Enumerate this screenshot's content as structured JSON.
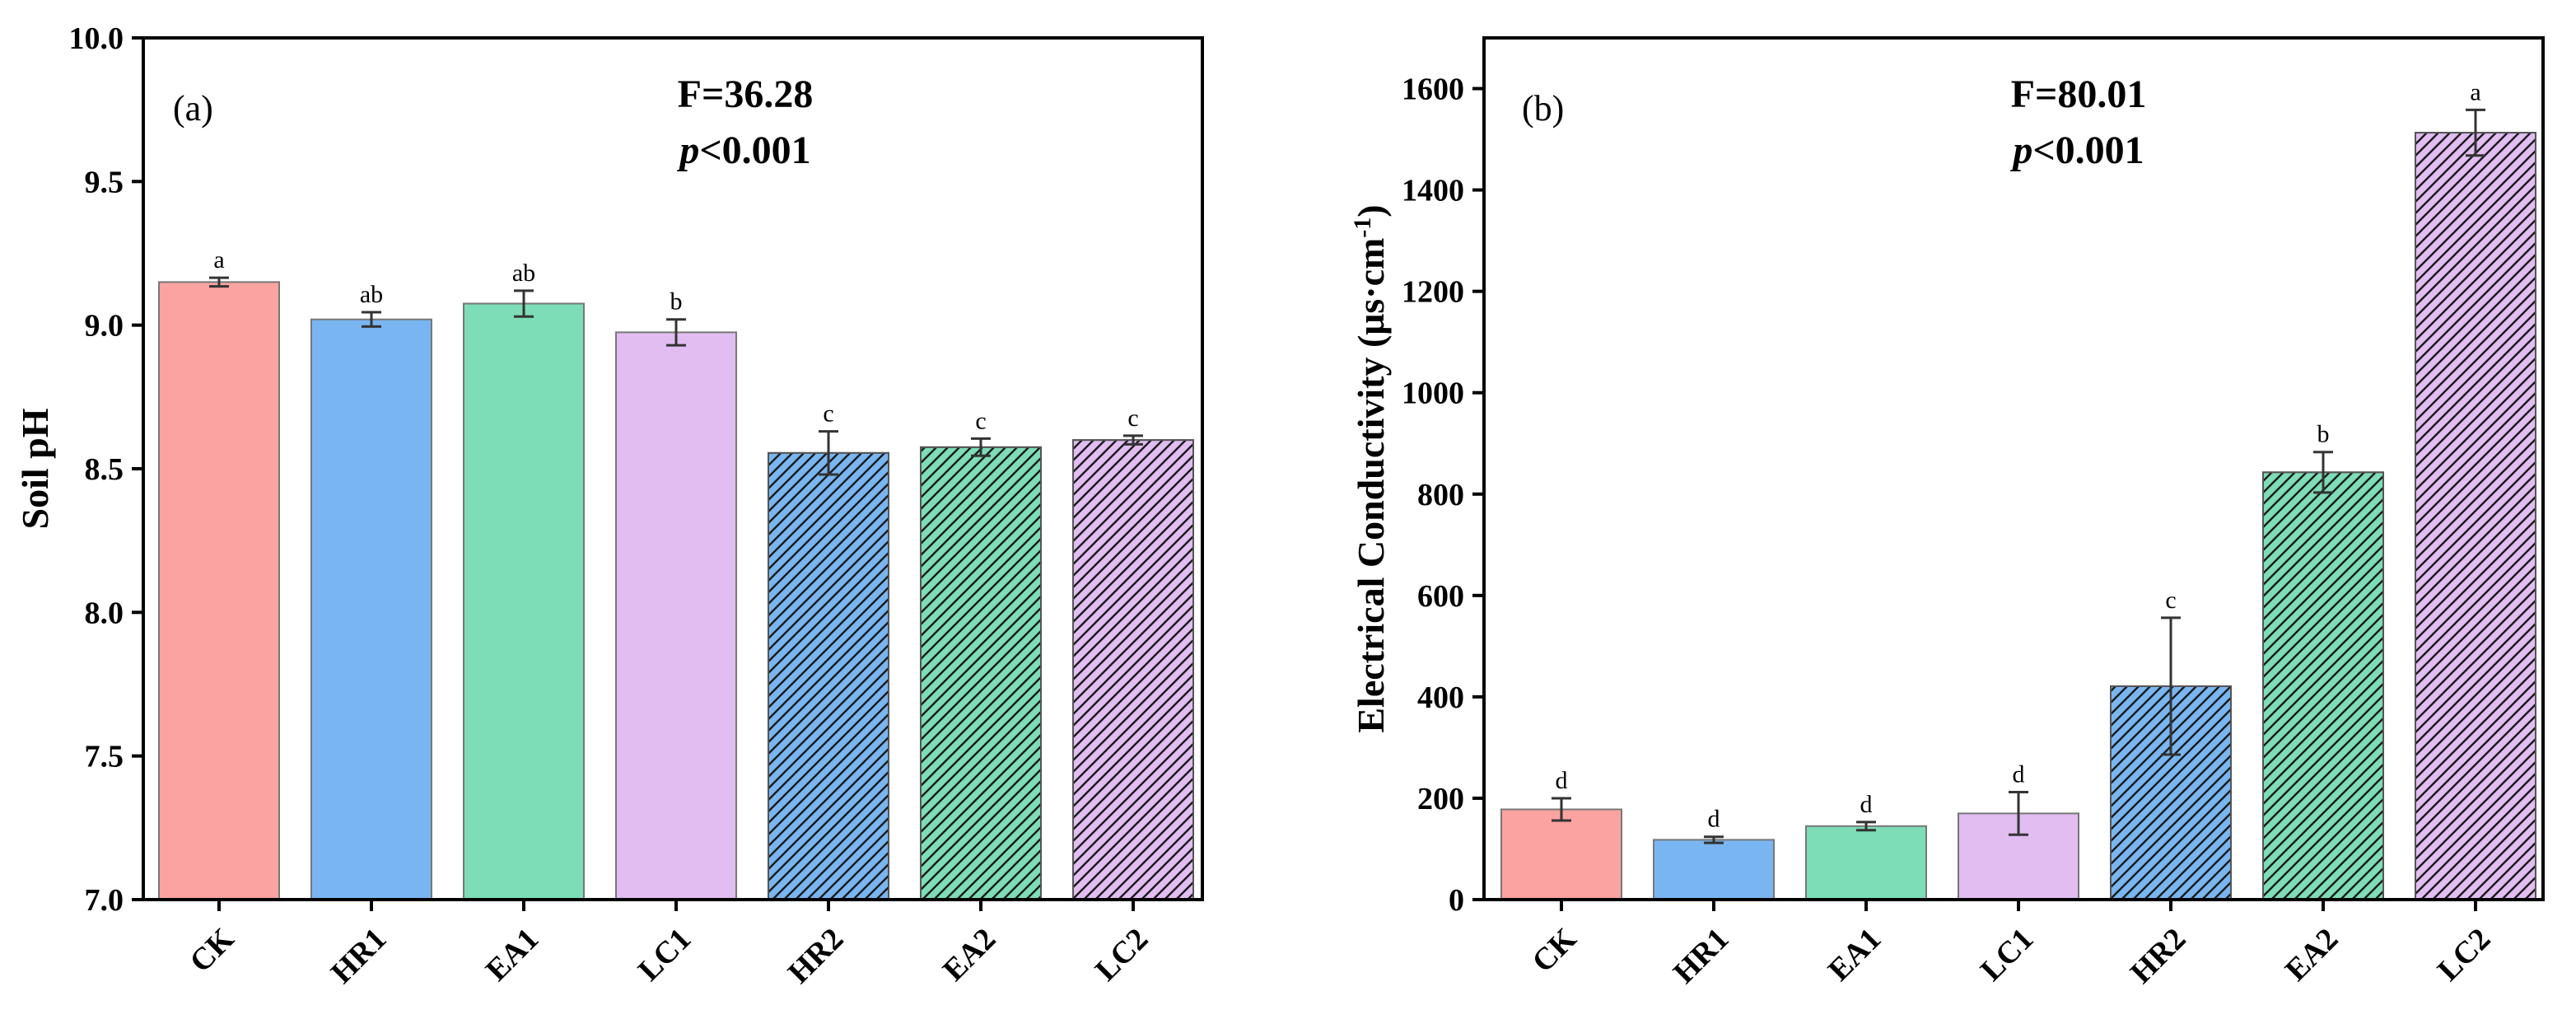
{
  "chart_data": [
    {
      "type": "bar",
      "panel": "(a)",
      "ylabel": "Soil pH",
      "ylim": [
        7.0,
        10.0
      ],
      "yticks": [
        "7.0",
        "7.5",
        "8.0",
        "8.5",
        "9.0",
        "9.5",
        "10.0"
      ],
      "ytick_values": [
        7.0,
        7.5,
        8.0,
        8.5,
        9.0,
        9.5,
        10.0
      ],
      "categories": [
        "CK",
        "HR1",
        "EA1",
        "LC1",
        "HR2",
        "EA2",
        "LC2"
      ],
      "values": [
        9.15,
        9.02,
        9.075,
        8.975,
        8.555,
        8.575,
        8.6
      ],
      "errors": [
        0.015,
        0.025,
        0.045,
        0.045,
        0.075,
        0.03,
        0.015
      ],
      "significance": [
        "a",
        "ab",
        "ab",
        "b",
        "c",
        "c",
        "c"
      ],
      "hatched": [
        false,
        false,
        false,
        false,
        true,
        true,
        true
      ],
      "colors": [
        "#fba3a0",
        "#79b6f1",
        "#7dddb7",
        "#e1bdf2",
        "#79b6f1",
        "#7dddb7",
        "#e1bdf2"
      ],
      "stat_f": "F=36.28",
      "stat_p_italic": "p",
      "stat_p_rest": "<0.001"
    },
    {
      "type": "bar",
      "panel": "(b)",
      "ylabel": "Electrical Conductivity (μs·cm",
      "ylabel_sup": "-1",
      "ylabel_close": ")",
      "ylim": [
        0,
        1700
      ],
      "yticks": [
        "0",
        "200",
        "400",
        "600",
        "800",
        "1000",
        "1200",
        "1400",
        "1600"
      ],
      "ytick_values": [
        0,
        200,
        400,
        600,
        800,
        1000,
        1200,
        1400,
        1600
      ],
      "categories": [
        "CK",
        "HR1",
        "EA1",
        "LC1",
        "HR2",
        "EA2",
        "LC2"
      ],
      "values": [
        178,
        118,
        145,
        170,
        421,
        843,
        1513
      ],
      "errors": [
        22,
        6,
        8,
        42,
        135,
        40,
        45
      ],
      "significance": [
        "d",
        "d",
        "d",
        "d",
        "c",
        "b",
        "a"
      ],
      "hatched": [
        false,
        false,
        false,
        false,
        true,
        true,
        true
      ],
      "colors": [
        "#fba3a0",
        "#79b6f1",
        "#7dddb7",
        "#e1bdf2",
        "#79b6f1",
        "#7dddb7",
        "#e1bdf2"
      ],
      "stat_f": "F=80.01",
      "stat_p_italic": "p",
      "stat_p_rest": "<0.001"
    }
  ]
}
